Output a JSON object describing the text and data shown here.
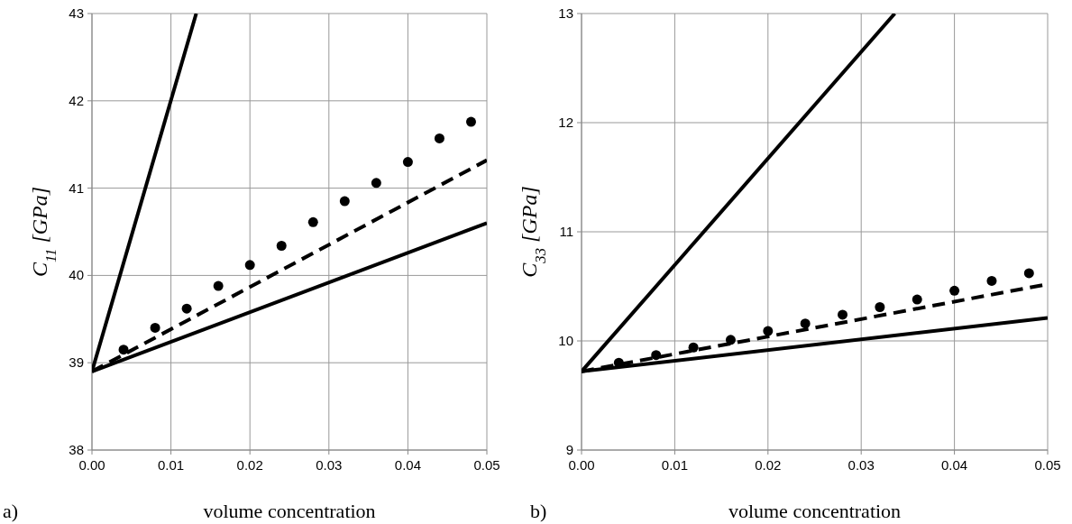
{
  "chart_data": [
    {
      "type": "line",
      "xlabel": "volume concentration",
      "ylabel": "C$_{11}$ [GPa]",
      "annotations": [
        "a)"
      ],
      "xlim": [
        0,
        0.05
      ],
      "ylim": [
        38,
        43
      ],
      "xticks": [
        {
          "value": 0,
          "label": "0.00"
        },
        {
          "value": 0.01,
          "label": "0.01"
        },
        {
          "value": 0.02,
          "label": "0.02"
        },
        {
          "value": 0.03,
          "label": "0.03"
        },
        {
          "value": 0.04,
          "label": "0.04"
        },
        {
          "value": 0.05,
          "label": "0.05"
        }
      ],
      "yticks": [
        38,
        39,
        40,
        41,
        42,
        43
      ],
      "grid": true,
      "series": [
        {
          "color": "#000000",
          "line_style": "solid",
          "x": [
            0,
            0.0132
          ],
          "values": [
            38.9,
            43
          ]
        },
        {
          "color": "#000000",
          "line_style": "dashed",
          "x": [
            0,
            0.05
          ],
          "values": [
            38.9,
            41.32
          ]
        },
        {
          "color": "#000000",
          "line_style": "solid",
          "x": [
            0,
            0.05
          ],
          "values": [
            38.9,
            40.6
          ]
        },
        {
          "type": "scatter",
          "color": "#000000",
          "marker": "circle",
          "x": [
            0.004,
            0.008,
            0.012,
            0.016,
            0.02,
            0.024,
            0.028,
            0.032,
            0.036,
            0.04,
            0.044,
            0.048
          ],
          "values": [
            39.15,
            39.4,
            39.62,
            39.88,
            40.12,
            40.34,
            40.61,
            40.85,
            41.06,
            41.3,
            41.57,
            41.76
          ]
        }
      ]
    },
    {
      "type": "line",
      "xlabel": "volume concentration",
      "ylabel": "C$_{33}$ [GPa]",
      "annotations": [
        "b)"
      ],
      "xlim": [
        0,
        0.05
      ],
      "ylim": [
        9,
        13
      ],
      "xticks": [
        {
          "value": 0,
          "label": "0.00"
        },
        {
          "value": 0.01,
          "label": "0.01"
        },
        {
          "value": 0.02,
          "label": "0.02"
        },
        {
          "value": 0.03,
          "label": "0.03"
        },
        {
          "value": 0.04,
          "label": "0.04"
        },
        {
          "value": 0.05,
          "label": "0.05"
        }
      ],
      "yticks": [
        9,
        10,
        11,
        12,
        13
      ],
      "grid": true,
      "series": [
        {
          "color": "#000000",
          "line_style": "solid",
          "x": [
            0,
            0.0336
          ],
          "values": [
            9.72,
            13
          ]
        },
        {
          "color": "#000000",
          "line_style": "dashed",
          "x": [
            0,
            0.05
          ],
          "values": [
            9.72,
            10.52
          ]
        },
        {
          "color": "#000000",
          "line_style": "solid",
          "x": [
            0,
            0.05
          ],
          "values": [
            9.72,
            10.21
          ]
        },
        {
          "type": "scatter",
          "color": "#000000",
          "marker": "circle",
          "x": [
            0.004,
            0.008,
            0.012,
            0.016,
            0.02,
            0.024,
            0.028,
            0.032,
            0.036,
            0.04,
            0.044,
            0.048
          ],
          "values": [
            9.8,
            9.87,
            9.94,
            10.01,
            10.09,
            10.16,
            10.24,
            10.31,
            10.38,
            10.46,
            10.55,
            10.62
          ]
        }
      ]
    }
  ]
}
